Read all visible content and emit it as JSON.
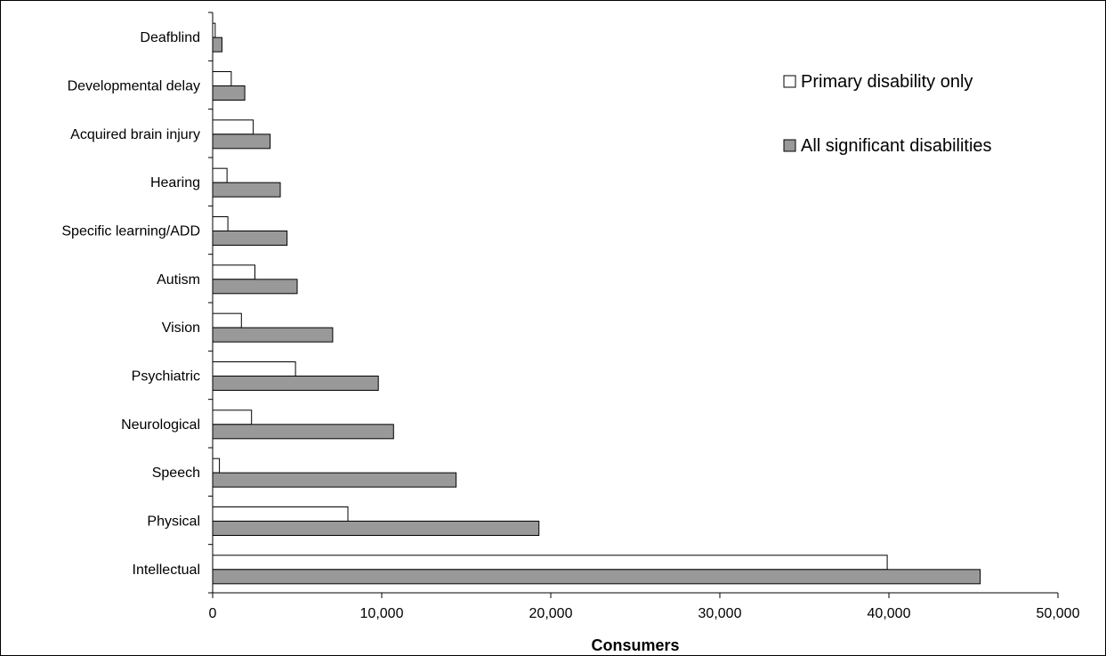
{
  "chart_data": {
    "type": "bar",
    "orientation": "horizontal",
    "categories": [
      "Intellectual",
      "Physical",
      "Speech",
      "Neurological",
      "Psychiatric",
      "Vision",
      "Autism",
      "Specific learning/ADD",
      "Hearing",
      "Acquired brain injury",
      "Developmental delay",
      "Deafblind"
    ],
    "series": [
      {
        "name": "Primary disability only",
        "color": "#ffffff",
        "values": [
          39900,
          8000,
          400,
          2300,
          4900,
          1700,
          2500,
          900,
          850,
          2400,
          1100,
          150
        ]
      },
      {
        "name": "All significant disabilities",
        "color": "#999999",
        "values": [
          45400,
          19300,
          14400,
          10700,
          9800,
          7100,
          5000,
          4400,
          4000,
          3400,
          1900,
          550
        ]
      }
    ],
    "xlabel": "Consumers",
    "ylabel": "",
    "xlim": [
      0,
      50000
    ],
    "xticks": [
      0,
      10000,
      20000,
      30000,
      40000,
      50000
    ],
    "xtick_labels": [
      "0",
      "10,000",
      "20,000",
      "30,000",
      "40,000",
      "50,000"
    ],
    "legend_position": "top-right",
    "grid": false
  }
}
